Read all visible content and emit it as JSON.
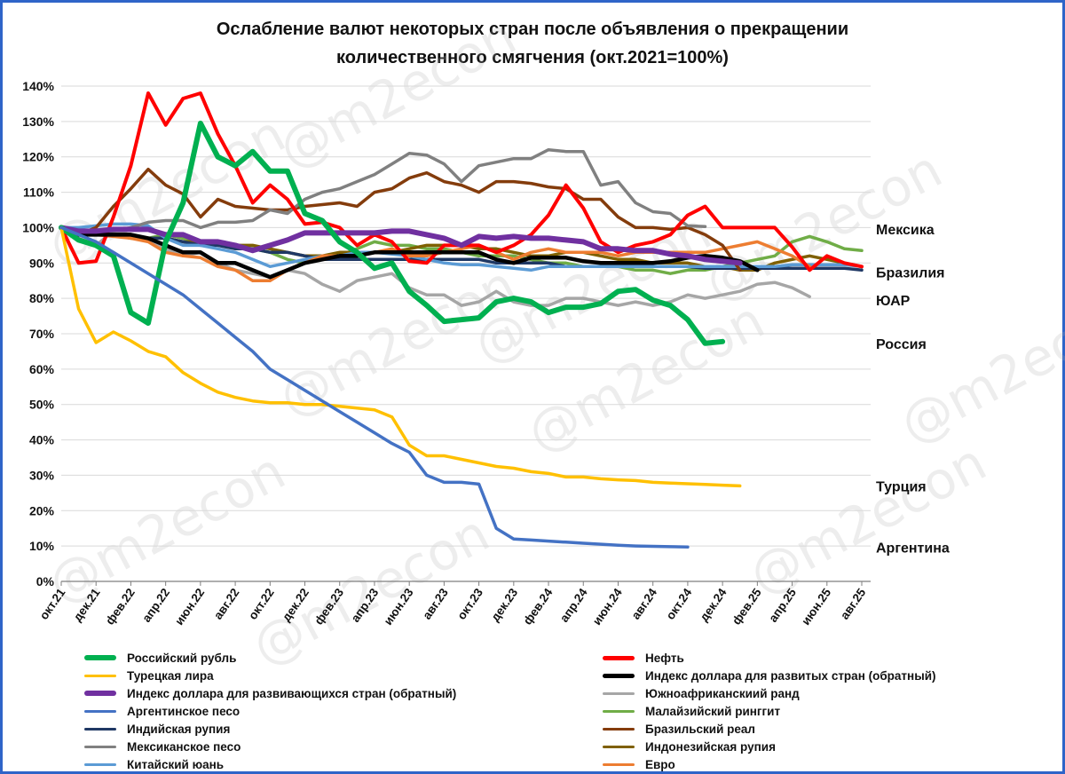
{
  "watermark": "@m2econ",
  "chart_data": {
    "type": "line",
    "title_line1": "Ослабление валют некоторых стран после объявления о прекращении",
    "title_line2": "количественного смягчения  (окт.2021=100%)",
    "ylim": [
      0,
      140
    ],
    "yticks": [
      "0%",
      "10%",
      "20%",
      "30%",
      "40%",
      "50%",
      "60%",
      "70%",
      "80%",
      "90%",
      "100%",
      "110%",
      "120%",
      "130%",
      "140%"
    ],
    "xtick_labels": [
      "окт.21",
      "дек.21",
      "фев.22",
      "апр.22",
      "июн.22",
      "авг.22",
      "окт.22",
      "дек.22",
      "фев.23",
      "апр.23",
      "июн.23",
      "авг.23",
      "окт.23",
      "дек.23",
      "фев.24",
      "апр.24",
      "июн.24",
      "авг.24",
      "окт.24",
      "дек.24",
      "фев.25",
      "апр.25",
      "июн.25",
      "авг.25"
    ],
    "x_count": 47,
    "grid": true,
    "legend_position": "bottom",
    "end_labels": [
      {
        "text": "Мексика",
        "y": 99.6
      },
      {
        "text": "Бразилия",
        "y": 87.5
      },
      {
        "text": "ЮАР",
        "y": 79.5
      },
      {
        "text": "Россия",
        "y": 67.3
      },
      {
        "text": "Турция",
        "y": 27.0
      },
      {
        "text": "Аргентина",
        "y": 9.7
      }
    ],
    "series": [
      {
        "name": "Южноафриканский ранд",
        "color": "#a6a6a6",
        "width": 3.5,
        "values": [
          100,
          97,
          95,
          99,
          98,
          97,
          94,
          92,
          93,
          90,
          88,
          87,
          86,
          88,
          87,
          84,
          82,
          85,
          86,
          87,
          83,
          81,
          81,
          78,
          79,
          82,
          79,
          78,
          78,
          80,
          80,
          79,
          78,
          79,
          78,
          79,
          81,
          80,
          81,
          82,
          84,
          84.5,
          83,
          80.5
        ]
      },
      {
        "name": "Малайзийский ринггит",
        "color": "#70ad47",
        "width": 3.5,
        "values": [
          100,
          99,
          98,
          98,
          97,
          97,
          98,
          97,
          96,
          96,
          95,
          94,
          93,
          91,
          90,
          91,
          92,
          94,
          96,
          95,
          95,
          94,
          94,
          93,
          92,
          92,
          92,
          91,
          90,
          90,
          89,
          89,
          89,
          88,
          88,
          87,
          88,
          88,
          89,
          90,
          91,
          92,
          96,
          97.5,
          96,
          94,
          93.5
        ]
      },
      {
        "name": "Индонезийская рупия",
        "color": "#7f6000",
        "width": 3.5,
        "values": [
          100,
          99,
          98,
          98,
          97,
          97,
          97,
          96,
          96,
          95,
          95,
          95,
          94,
          93,
          92,
          92,
          93,
          93,
          93,
          93,
          94,
          95,
          95,
          95,
          94,
          94,
          93,
          92,
          92,
          93,
          93,
          92,
          91,
          91,
          90,
          90,
          90,
          89,
          89,
          88,
          88,
          90,
          91,
          92,
          91,
          90,
          89
        ]
      },
      {
        "name": "Индийская рупия",
        "color": "#1f3864",
        "width": 3.5,
        "values": [
          100,
          99,
          99,
          98,
          98,
          97,
          97,
          96,
          95,
          95,
          94,
          94,
          93,
          93,
          92,
          91,
          91,
          91,
          91,
          91,
          91,
          91,
          91,
          91,
          91,
          90,
          90,
          90,
          90,
          89,
          89,
          89,
          89,
          89,
          89,
          89,
          89,
          88.5,
          88.5,
          88.5,
          88.5,
          88.5,
          88.5,
          88.5,
          88.5,
          88.5,
          88
        ]
      },
      {
        "name": "Китайский юань",
        "color": "#5b9bd5",
        "width": 3.5,
        "values": [
          100,
          100,
          100.5,
          101,
          101,
          100.5,
          97,
          95,
          95,
          94,
          93,
          91,
          89,
          90,
          91,
          92,
          92,
          93,
          93,
          92.5,
          92,
          91,
          90,
          89.5,
          89.5,
          89,
          88.5,
          88,
          89,
          89,
          89,
          89,
          89,
          89,
          89,
          89,
          89,
          89,
          89,
          89,
          89,
          89,
          89.5,
          89.5,
          89.5,
          89.5,
          89
        ]
      },
      {
        "name": "Евро",
        "color": "#ed7d31",
        "width": 3.5,
        "values": [
          100,
          98,
          98,
          97.5,
          97,
          96,
          93,
          92,
          91.5,
          89,
          88,
          85,
          85,
          88,
          90,
          92,
          92,
          92,
          93,
          94,
          92,
          92,
          93,
          94,
          95,
          93,
          91,
          93,
          94,
          93,
          93,
          93,
          92,
          93,
          93,
          93,
          93,
          93,
          94,
          95,
          96,
          94,
          92,
          89
        ]
      },
      {
        "name": "Бразильский реал",
        "color": "#843c0c",
        "width": 3.5,
        "values": [
          100,
          98,
          100,
          106,
          111,
          116.5,
          112,
          109.5,
          103,
          108,
          106,
          105.5,
          105,
          105,
          106,
          106.5,
          107,
          106,
          110,
          111,
          114,
          115.5,
          113,
          112,
          110,
          113,
          113,
          112.5,
          111.5,
          111,
          108,
          108,
          103,
          100,
          100,
          99.5,
          100,
          98,
          95,
          88
        ]
      },
      {
        "name": "Мексиканское песо",
        "color": "#808080",
        "width": 3.5,
        "values": [
          100,
          98,
          98,
          99,
          100,
          101.5,
          102,
          102,
          100,
          101.5,
          101.5,
          102,
          105,
          104,
          108,
          110,
          111,
          113,
          115,
          118,
          121,
          120.5,
          118,
          113,
          117.5,
          118.5,
          119.5,
          119.5,
          122,
          121.5,
          121.5,
          112,
          113,
          107,
          104.5,
          104,
          100.5,
          100.3
        ]
      },
      {
        "name": "Нефть",
        "color": "#ff0000",
        "width": 4,
        "values": [
          100,
          90,
          90.5,
          103,
          117.5,
          138,
          129,
          136.5,
          138,
          126.5,
          117.5,
          107,
          112,
          108,
          101,
          101.5,
          100,
          95,
          98,
          96,
          90.5,
          90,
          95,
          95,
          95,
          93,
          95,
          98,
          103.5,
          112,
          105.5,
          96,
          93,
          95,
          96,
          98,
          103.5,
          106,
          100,
          100,
          100,
          100,
          94.5,
          88,
          92,
          90,
          89
        ]
      },
      {
        "name": "Индекс доллара для развитых стран (обратный)",
        "color": "#000000",
        "width": 4.5,
        "values": [
          100,
          98,
          98,
          98,
          98,
          97,
          95,
          93,
          93,
          90,
          90,
          88,
          86,
          88,
          90,
          91,
          92,
          92,
          93,
          93,
          93,
          93,
          93,
          93,
          93,
          91,
          90,
          91.5,
          91.5,
          91.5,
          90.5,
          90,
          90,
          90,
          90,
          90.5,
          91.5,
          92,
          91.5,
          90.5,
          88
        ]
      },
      {
        "name": "Индекс доллара для развивающихся стран (обратный)",
        "color": "#7030a0",
        "width": 6,
        "values": [
          100,
          99,
          99,
          99.5,
          99.5,
          99.5,
          98,
          98,
          96,
          96,
          95,
          93.5,
          95,
          96.5,
          98.5,
          98.5,
          98.5,
          98.5,
          98.5,
          99,
          99,
          98,
          97,
          95,
          97.5,
          97,
          97.5,
          97,
          97,
          96.5,
          96,
          94,
          94,
          93.5,
          93.5,
          92.5,
          92,
          91,
          90.5,
          90
        ]
      },
      {
        "name": "Российский рубль",
        "color": "#00b050",
        "width": 6,
        "values": [
          100,
          96.5,
          95,
          92,
          76,
          73,
          96,
          107,
          129.5,
          120,
          117.5,
          121.5,
          116,
          116,
          104,
          102,
          96,
          93,
          88.5,
          90,
          82,
          78,
          73.5,
          74,
          74.5,
          79,
          80,
          79,
          76,
          77.5,
          77.5,
          78.5,
          82,
          82.5,
          79.5,
          78,
          74,
          67.3,
          67.8
        ]
      },
      {
        "name": "Турецкая лира",
        "color": "#ffc000",
        "width": 3.5,
        "values": [
          100,
          77,
          67.5,
          70.5,
          68,
          65,
          63.5,
          59,
          56,
          53.5,
          52,
          51,
          50.5,
          50.5,
          50,
          50,
          49.5,
          49,
          48.5,
          46.5,
          38.5,
          35.5,
          35.5,
          34.5,
          33.5,
          32.5,
          32,
          31,
          30.5,
          29.5,
          29.5,
          29,
          28.7,
          28.5,
          28,
          27.8,
          27.6,
          27.4,
          27.2,
          27
        ]
      },
      {
        "name": "Аргентинское песо",
        "color": "#4472c4",
        "width": 3.5,
        "values": [
          100,
          98,
          96,
          93,
          90,
          87,
          84,
          81,
          77,
          73,
          69,
          65,
          60,
          57,
          54,
          51,
          48,
          45,
          42,
          39,
          36.5,
          30,
          28,
          28,
          27.5,
          15,
          12,
          11.7,
          11.4,
          11.1,
          10.8,
          10.5,
          10.2,
          10,
          9.9,
          9.8,
          9.7
        ]
      }
    ]
  },
  "legend": {
    "left": [
      "Российский рубль",
      "Турецкая лира",
      "Индекс доллара для развивающихся стран (обратный)",
      "Аргентинское песо",
      "Индийская рупия",
      "Мексиканское песо",
      "Китайский юань"
    ],
    "right": [
      "Нефть",
      "Индекс доллара для развитых стран (обратный)",
      "Южноафриканскиий ранд",
      "Малайзийский ринггит",
      "Бразильский реал",
      "Индонезийская рупия",
      "Евро"
    ],
    "left_colors": [
      "#00b050",
      "#ffc000",
      "#7030a0",
      "#4472c4",
      "#1f3864",
      "#808080",
      "#5b9bd5"
    ],
    "right_colors": [
      "#ff0000",
      "#000000",
      "#a6a6a6",
      "#70ad47",
      "#843c0c",
      "#7f6000",
      "#ed7d31"
    ],
    "left_widths": [
      6,
      3,
      6,
      3,
      3,
      3,
      3
    ],
    "right_widths": [
      5,
      5,
      3,
      3,
      3,
      3,
      3
    ]
  }
}
